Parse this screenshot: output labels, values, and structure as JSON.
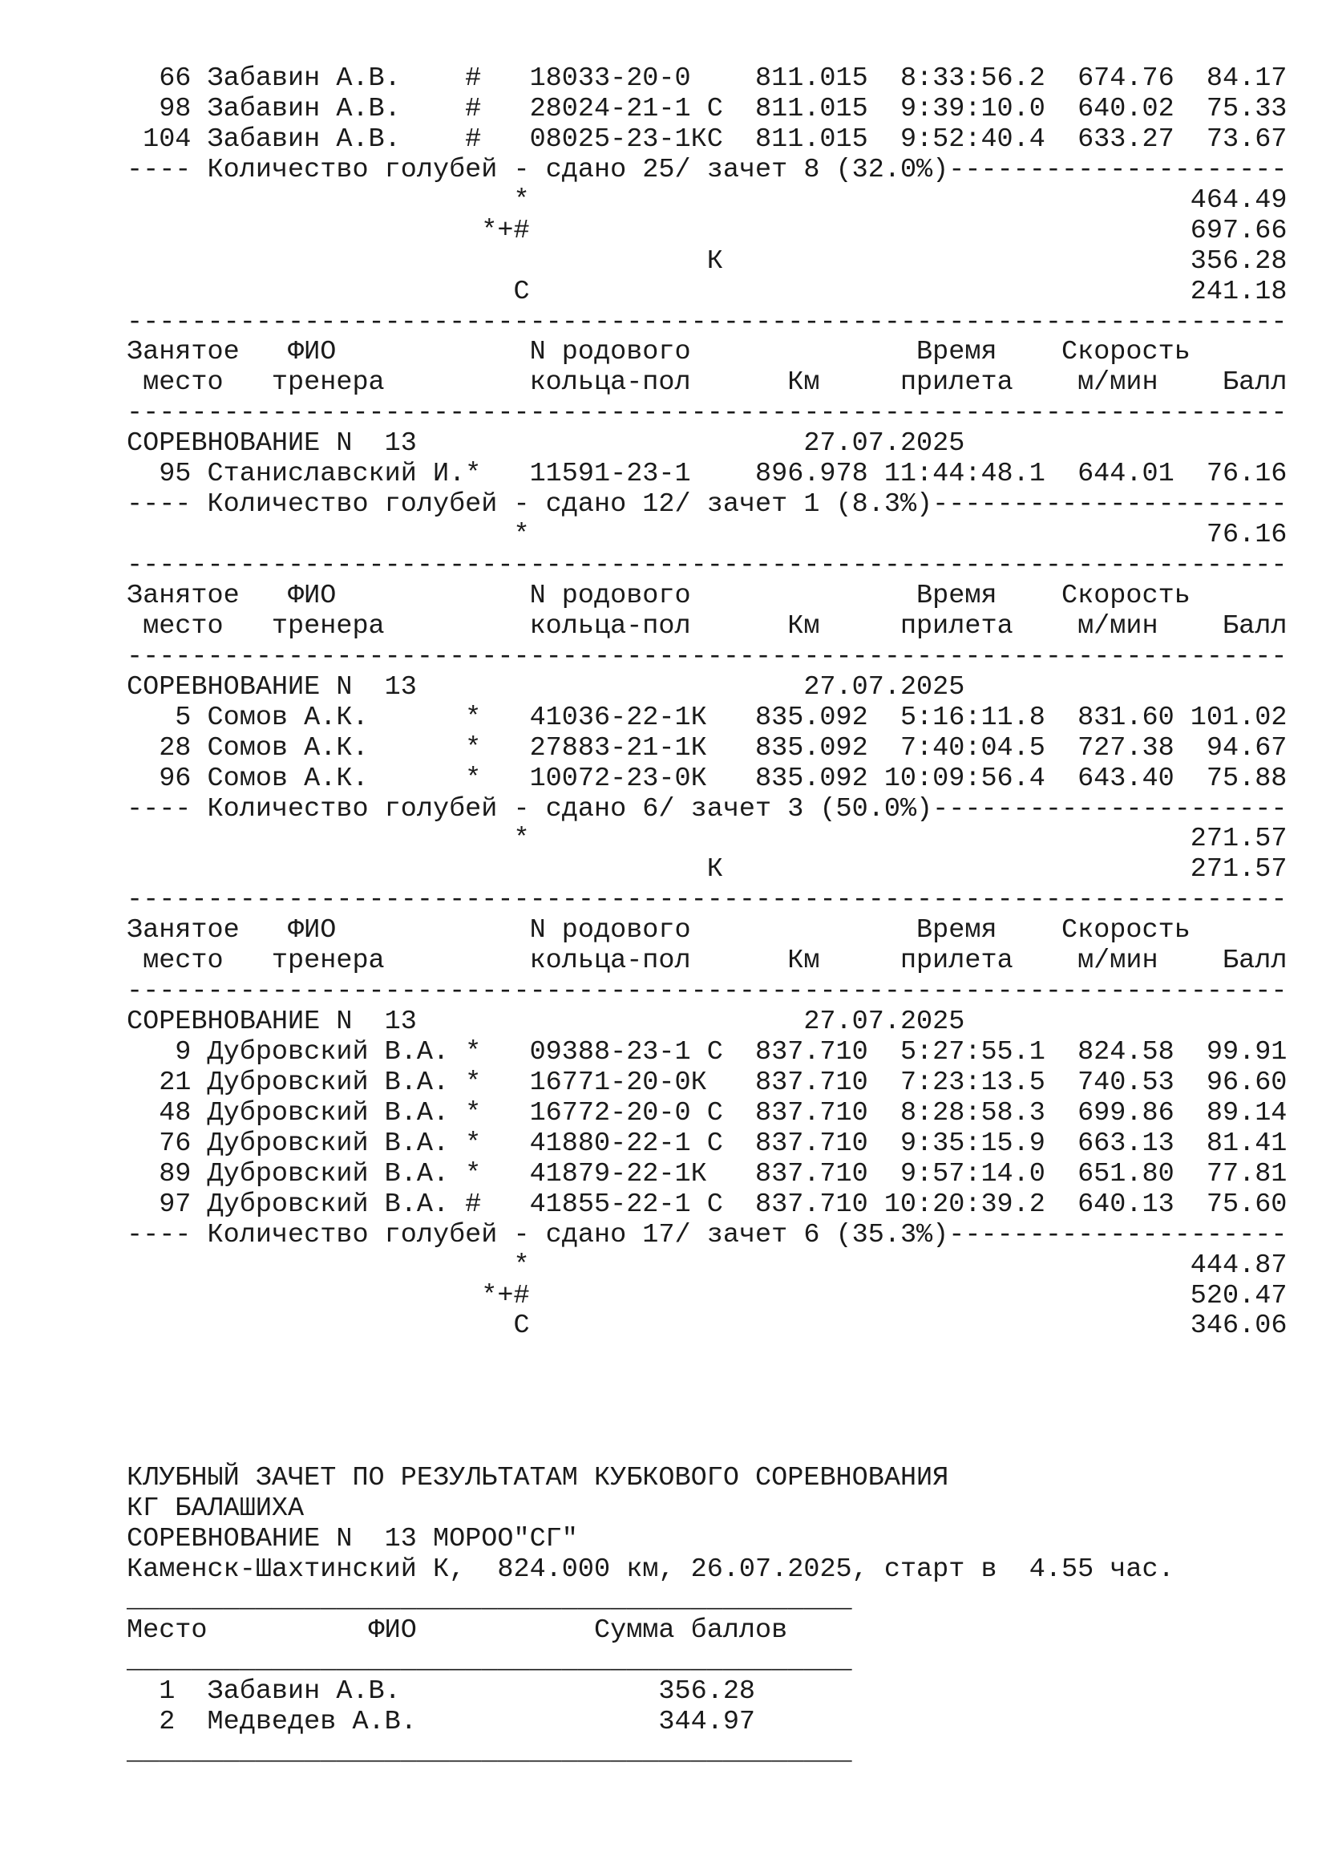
{
  "header": {
    "place_1": "Занятое",
    "place_2": "место",
    "name_1": "ФИО",
    "name_2": "тренера",
    "ring_1": "N родового",
    "ring_2": "кольца-пол",
    "km": "Км",
    "time_1": "Время",
    "time_2": "прилета",
    "speed_1": "Скорость",
    "speed_2": "м/мин",
    "ball": "Балл"
  },
  "blocks": [
    {
      "type": "rows",
      "rows": [
        {
          "place": "66",
          "name": "Забавин А.В.",
          "mark": "#",
          "ring": "18033-20-0",
          "km": "811.015",
          "time": "8:33:56.2",
          "speed": "674.76",
          "ball": "84.17"
        },
        {
          "place": "98",
          "name": "Забавин А.В.",
          "mark": "#",
          "ring": "28024-21-1 С",
          "km": "811.015",
          "time": "9:39:10.0",
          "speed": "640.02",
          "ball": "75.33"
        },
        {
          "place": "104",
          "name": "Забавин А.В.",
          "mark": "#",
          "ring": "08025-23-1КС",
          "km": "811.015",
          "time": "9:52:40.4",
          "speed": "633.27",
          "ball": "73.67"
        }
      ]
    },
    {
      "type": "summary",
      "text": "Количество голубей - сдано 25/ зачет 8 (32.0%)"
    },
    {
      "type": "totals",
      "items": [
        {
          "mark": "*",
          "value": "464.49"
        },
        {
          "mark": "*+#",
          "value": "697.66"
        },
        {
          "mark": "К",
          "value": "356.28"
        },
        {
          "mark": "С",
          "value": "241.18"
        }
      ]
    },
    {
      "type": "separator"
    },
    {
      "type": "header"
    },
    {
      "type": "separator"
    },
    {
      "type": "competition",
      "title": "СОРЕВНОВАНИЕ N  13",
      "date": "27.07.2025"
    },
    {
      "type": "rows",
      "rows": [
        {
          "place": "95",
          "name": "Станиславский И.",
          "mark": "*",
          "ring": "11591-23-1",
          "km": "896.978",
          "time": "11:44:48.1",
          "speed": "644.01",
          "ball": "76.16"
        }
      ]
    },
    {
      "type": "summary",
      "text": "Количество голубей - сдано 12/ зачет 1 (8.3%)"
    },
    {
      "type": "totals",
      "items": [
        {
          "mark": "*",
          "value": "76.16"
        }
      ]
    },
    {
      "type": "separator"
    },
    {
      "type": "header"
    },
    {
      "type": "separator"
    },
    {
      "type": "competition",
      "title": "СОРЕВНОВАНИЕ N  13",
      "date": "27.07.2025"
    },
    {
      "type": "rows",
      "rows": [
        {
          "place": "5",
          "name": "Сомов А.К.",
          "mark": "*",
          "ring": "41036-22-1К",
          "km": "835.092",
          "time": "5:16:11.8",
          "speed": "831.60",
          "ball": "101.02"
        },
        {
          "place": "28",
          "name": "Сомов А.К.",
          "mark": "*",
          "ring": "27883-21-1К",
          "km": "835.092",
          "time": "7:40:04.5",
          "speed": "727.38",
          "ball": "94.67"
        },
        {
          "place": "96",
          "name": "Сомов А.К.",
          "mark": "*",
          "ring": "10072-23-0К",
          "km": "835.092",
          "time": "10:09:56.4",
          "speed": "643.40",
          "ball": "75.88"
        }
      ]
    },
    {
      "type": "summary",
      "text": "Количество голубей - сдано 6/ зачет 3 (50.0%)"
    },
    {
      "type": "totals",
      "items": [
        {
          "mark": "*",
          "value": "271.57"
        },
        {
          "mark": "К",
          "value": "271.57"
        }
      ]
    },
    {
      "type": "separator"
    },
    {
      "type": "header"
    },
    {
      "type": "separator"
    },
    {
      "type": "competition",
      "title": "СОРЕВНОВАНИЕ N  13",
      "date": "27.07.2025"
    },
    {
      "type": "rows",
      "rows": [
        {
          "place": "9",
          "name": "Дубровский В.А.",
          "mark": "*",
          "ring": "09388-23-1 С",
          "km": "837.710",
          "time": "5:27:55.1",
          "speed": "824.58",
          "ball": "99.91"
        },
        {
          "place": "21",
          "name": "Дубровский В.А.",
          "mark": "*",
          "ring": "16771-20-0К",
          "km": "837.710",
          "time": "7:23:13.5",
          "speed": "740.53",
          "ball": "96.60"
        },
        {
          "place": "48",
          "name": "Дубровский В.А.",
          "mark": "*",
          "ring": "16772-20-0 С",
          "km": "837.710",
          "time": "8:28:58.3",
          "speed": "699.86",
          "ball": "89.14"
        },
        {
          "place": "76",
          "name": "Дубровский В.А.",
          "mark": "*",
          "ring": "41880-22-1 С",
          "km": "837.710",
          "time": "9:35:15.9",
          "speed": "663.13",
          "ball": "81.41"
        },
        {
          "place": "89",
          "name": "Дубровский В.А.",
          "mark": "*",
          "ring": "41879-22-1К",
          "km": "837.710",
          "time": "9:57:14.0",
          "speed": "651.80",
          "ball": "77.81"
        },
        {
          "place": "97",
          "name": "Дубровский В.А.",
          "mark": "#",
          "ring": "41855-22-1 С",
          "km": "837.710",
          "time": "10:20:39.2",
          "speed": "640.13",
          "ball": "75.60"
        }
      ]
    },
    {
      "type": "summary",
      "text": "Количество голубей - сдано 17/ зачет 6 (35.3%)"
    },
    {
      "type": "totals",
      "items": [
        {
          "mark": "*",
          "value": "444.87"
        },
        {
          "mark": "*+#",
          "value": "520.47"
        },
        {
          "mark": "С",
          "value": "346.06"
        }
      ]
    }
  ],
  "club": {
    "lines": [
      "КЛУБНЫЙ ЗАЧЕТ ПО РЕЗУЛЬТАТАМ КУБКОВОГО СОРЕВНОВАНИЯ",
      "КГ БАЛАШИХА",
      "СОРЕВНОВАНИЕ N  13 МОРОО\"СГ\"",
      "Каменск-Шахтинский К,  824.000 км, 26.07.2025, старт в  4.55 час."
    ],
    "columns": {
      "place": "Место",
      "name": "ФИО",
      "sum": "Сумма баллов"
    },
    "rows": [
      {
        "place": "1",
        "name": "Забавин А.В.",
        "sum": "356.28"
      },
      {
        "place": "2",
        "name": "Медведев А.В.",
        "sum": "344.97"
      }
    ]
  }
}
